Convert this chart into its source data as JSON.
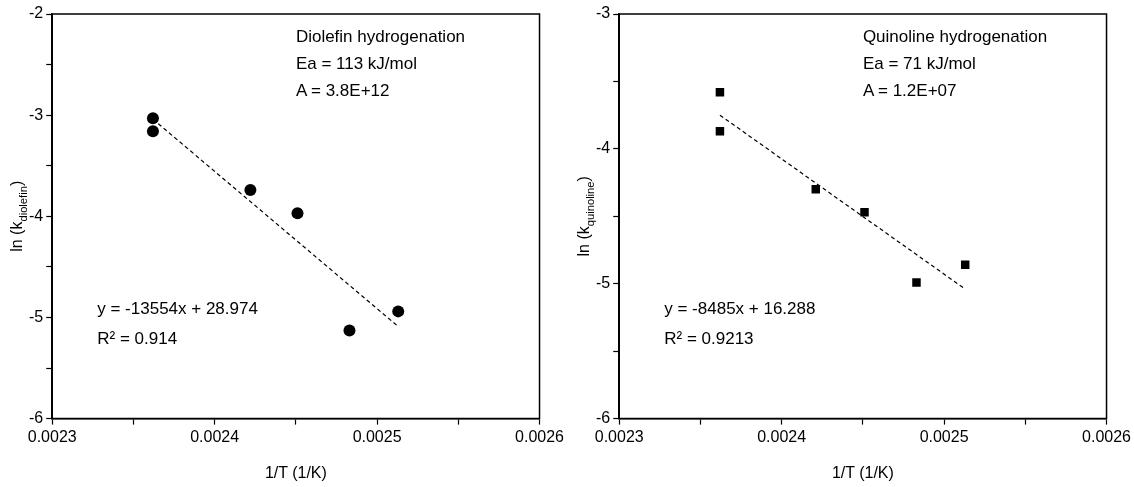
{
  "chart_data": [
    {
      "type": "scatter",
      "xlabel": "1/T (1/K)",
      "ylabel": "ln (k$_{diolefin}$)",
      "annotations": [
        "Diolefin hydrogenation",
        "Ea = 113 kJ/mol",
        "A = 3.8E+12",
        "y = -13554x + 28.974",
        "R² = 0.914"
      ],
      "xlim": [
        0.0023,
        0.0026
      ],
      "xticks": [
        0.0023,
        {
          "value": 0.00235,
          "label": null
        },
        0.0024,
        {
          "value": 0.00245,
          "label": null
        },
        0.0025,
        {
          "value": 0.00255,
          "label": null
        },
        0.0026
      ],
      "ylim": [
        -6,
        -2
      ],
      "yticks": [
        -6,
        {
          "value": -5.5,
          "label": null
        },
        -5,
        {
          "value": -4.5,
          "label": null
        },
        -4,
        {
          "value": -3.5,
          "label": null
        },
        -3,
        {
          "value": -2.5,
          "label": null
        },
        -2
      ],
      "grid": false,
      "legend": false,
      "series": [
        {
          "marker": "circle",
          "color": "#000000",
          "x": [
            0.002362,
            0.002362,
            0.002422,
            0.002451,
            0.002483,
            0.002513
          ],
          "values": [
            -3.03,
            -3.16,
            -3.74,
            -3.97,
            -5.13,
            -4.94
          ]
        },
        {
          "type": "line",
          "marker": "none",
          "line_style": "dashed",
          "color": "#000000",
          "x": [
            0.002362,
            0.002513
          ],
          "values": [
            -3.04,
            -5.09
          ]
        }
      ]
    },
    {
      "type": "scatter",
      "xlabel": "1/T (1/K)",
      "ylabel": "ln (k$_{quinoline}$)",
      "annotations": [
        "Quinoline hydrogenation",
        "Ea = 71 kJ/mol",
        "A = 1.2E+07",
        "y = -8485x + 16.288",
        "R² = 0.9213"
      ],
      "xlim": [
        0.0023,
        0.0026
      ],
      "xticks": [
        0.0023,
        {
          "value": 0.00235,
          "label": null
        },
        0.0024,
        {
          "value": 0.00245,
          "label": null
        },
        0.0025,
        {
          "value": 0.00255,
          "label": null
        },
        0.0026
      ],
      "ylim": [
        -6,
        -3
      ],
      "yticks": [
        -6,
        {
          "value": -5.5,
          "label": null
        },
        -5,
        {
          "value": -4.5,
          "label": null
        },
        -4,
        {
          "value": -3.5,
          "label": null
        },
        -3
      ],
      "grid": false,
      "legend": false,
      "series": [
        {
          "marker": "square",
          "color": "#000000",
          "x": [
            0.002362,
            0.002362,
            0.002421,
            0.002451,
            0.002483,
            0.002513
          ],
          "values": [
            -3.58,
            -3.87,
            -4.3,
            -4.47,
            -4.99,
            -4.86
          ]
        },
        {
          "type": "line",
          "marker": "none",
          "line_style": "dashed",
          "color": "#000000",
          "x": [
            0.002362,
            0.002513
          ],
          "values": [
            -3.75,
            -5.04
          ]
        }
      ]
    }
  ]
}
